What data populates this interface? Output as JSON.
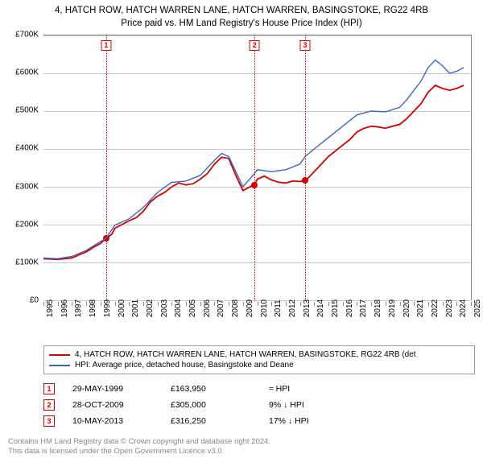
{
  "title_line1": "4, HATCH ROW, HATCH WARREN LANE, HATCH WARREN, BASINGSTOKE, RG22 4RB",
  "title_line2": "Price paid vs. HM Land Registry's House Price Index (HPI)",
  "chart": {
    "type": "line",
    "x_range": [
      1995,
      2025
    ],
    "y_range": [
      0,
      700000
    ],
    "y_ticks": [
      0,
      100000,
      200000,
      300000,
      400000,
      500000,
      600000,
      700000
    ],
    "y_tick_labels": [
      "£0",
      "£100K",
      "£200K",
      "£300K",
      "£400K",
      "£500K",
      "£600K",
      "£700K"
    ],
    "x_ticks": [
      1995,
      1996,
      1997,
      1998,
      1999,
      2000,
      2001,
      2002,
      2003,
      2004,
      2005,
      2006,
      2007,
      2008,
      2009,
      2010,
      2011,
      2012,
      2013,
      2014,
      2015,
      2016,
      2017,
      2018,
      2019,
      2020,
      2021,
      2022,
      2023,
      2024,
      2025
    ],
    "grid_color": "#c8c8c8",
    "axis_color": "#888888",
    "background": "#ffffff",
    "series": [
      {
        "name": "price_paid",
        "color": "#d40000",
        "line_width": 1.8,
        "points": [
          [
            1995.0,
            110000
          ],
          [
            1996.0,
            108000
          ],
          [
            1997.0,
            112000
          ],
          [
            1997.5,
            120000
          ],
          [
            1998.0,
            128000
          ],
          [
            1998.5,
            140000
          ],
          [
            1999.0,
            150000
          ],
          [
            1999.4,
            163950
          ],
          [
            1999.8,
            175000
          ],
          [
            2000.0,
            190000
          ],
          [
            2000.5,
            200000
          ],
          [
            2001.0,
            210000
          ],
          [
            2001.5,
            218000
          ],
          [
            2002.0,
            235000
          ],
          [
            2002.5,
            260000
          ],
          [
            2003.0,
            275000
          ],
          [
            2003.5,
            285000
          ],
          [
            2004.0,
            300000
          ],
          [
            2004.5,
            310000
          ],
          [
            2005.0,
            305000
          ],
          [
            2005.5,
            308000
          ],
          [
            2006.0,
            320000
          ],
          [
            2006.5,
            335000
          ],
          [
            2007.0,
            360000
          ],
          [
            2007.5,
            378000
          ],
          [
            2008.0,
            375000
          ],
          [
            2008.5,
            330000
          ],
          [
            2009.0,
            290000
          ],
          [
            2009.5,
            300000
          ],
          [
            2009.82,
            305000
          ],
          [
            2010.0,
            320000
          ],
          [
            2010.5,
            328000
          ],
          [
            2011.0,
            318000
          ],
          [
            2011.5,
            312000
          ],
          [
            2012.0,
            310000
          ],
          [
            2012.5,
            315000
          ],
          [
            2013.0,
            314000
          ],
          [
            2013.36,
            316250
          ],
          [
            2013.5,
            320000
          ],
          [
            2014.0,
            340000
          ],
          [
            2014.5,
            360000
          ],
          [
            2015.0,
            380000
          ],
          [
            2015.5,
            395000
          ],
          [
            2016.0,
            410000
          ],
          [
            2016.5,
            425000
          ],
          [
            2017.0,
            445000
          ],
          [
            2017.5,
            455000
          ],
          [
            2018.0,
            460000
          ],
          [
            2018.5,
            458000
          ],
          [
            2019.0,
            455000
          ],
          [
            2019.5,
            460000
          ],
          [
            2020.0,
            465000
          ],
          [
            2020.5,
            480000
          ],
          [
            2021.0,
            500000
          ],
          [
            2021.5,
            520000
          ],
          [
            2022.0,
            550000
          ],
          [
            2022.5,
            568000
          ],
          [
            2023.0,
            560000
          ],
          [
            2023.5,
            555000
          ],
          [
            2024.0,
            560000
          ],
          [
            2024.5,
            568000
          ]
        ]
      },
      {
        "name": "hpi",
        "color": "#3a66c4",
        "line_width": 1.4,
        "points": [
          [
            1995.0,
            112000
          ],
          [
            1996.0,
            110000
          ],
          [
            1997.0,
            116000
          ],
          [
            1998.0,
            132000
          ],
          [
            1999.0,
            155000
          ],
          [
            1999.4,
            164000
          ],
          [
            2000.0,
            198000
          ],
          [
            2001.0,
            215000
          ],
          [
            2002.0,
            245000
          ],
          [
            2003.0,
            285000
          ],
          [
            2004.0,
            312000
          ],
          [
            2005.0,
            315000
          ],
          [
            2006.0,
            330000
          ],
          [
            2007.0,
            370000
          ],
          [
            2007.5,
            388000
          ],
          [
            2008.0,
            380000
          ],
          [
            2008.5,
            340000
          ],
          [
            2009.0,
            300000
          ],
          [
            2009.82,
            335000
          ],
          [
            2010.0,
            345000
          ],
          [
            2011.0,
            340000
          ],
          [
            2012.0,
            345000
          ],
          [
            2013.0,
            360000
          ],
          [
            2013.36,
            380000
          ],
          [
            2014.0,
            400000
          ],
          [
            2015.0,
            430000
          ],
          [
            2016.0,
            460000
          ],
          [
            2017.0,
            490000
          ],
          [
            2018.0,
            500000
          ],
          [
            2019.0,
            498000
          ],
          [
            2020.0,
            510000
          ],
          [
            2020.5,
            530000
          ],
          [
            2021.0,
            555000
          ],
          [
            2021.5,
            580000
          ],
          [
            2022.0,
            615000
          ],
          [
            2022.5,
            635000
          ],
          [
            2023.0,
            620000
          ],
          [
            2023.5,
            600000
          ],
          [
            2024.0,
            605000
          ],
          [
            2024.5,
            615000
          ]
        ]
      }
    ],
    "event_markers": [
      {
        "n": "1",
        "x": 1999.4,
        "y": 163950,
        "color": "#d40000"
      },
      {
        "n": "2",
        "x": 2009.82,
        "y": 305000,
        "color": "#d40000"
      },
      {
        "n": "3",
        "x": 2013.36,
        "y": 316250,
        "color": "#d40000"
      }
    ],
    "marker_dot_color": "#d40000"
  },
  "legend": {
    "items": [
      {
        "color": "#d40000",
        "label": "4, HATCH ROW, HATCH WARREN LANE, HATCH WARREN, BASINGSTOKE, RG22 4RB (det"
      },
      {
        "color": "#3a66c4",
        "label": "HPI: Average price, detached house, Basingstoke and Deane"
      }
    ]
  },
  "sales": [
    {
      "n": "1",
      "color": "#d40000",
      "date": "29-MAY-1999",
      "price": "£163,950",
      "delta": "≈ HPI"
    },
    {
      "n": "2",
      "color": "#d40000",
      "date": "28-OCT-2009",
      "price": "£305,000",
      "delta": "9% ↓ HPI"
    },
    {
      "n": "3",
      "color": "#d40000",
      "date": "10-MAY-2013",
      "price": "£316,250",
      "delta": "17% ↓ HPI"
    }
  ],
  "footer_line1": "Contains HM Land Registry data © Crown copyright and database right 2024.",
  "footer_line2": "This data is licensed under the Open Government Licence v3.0."
}
